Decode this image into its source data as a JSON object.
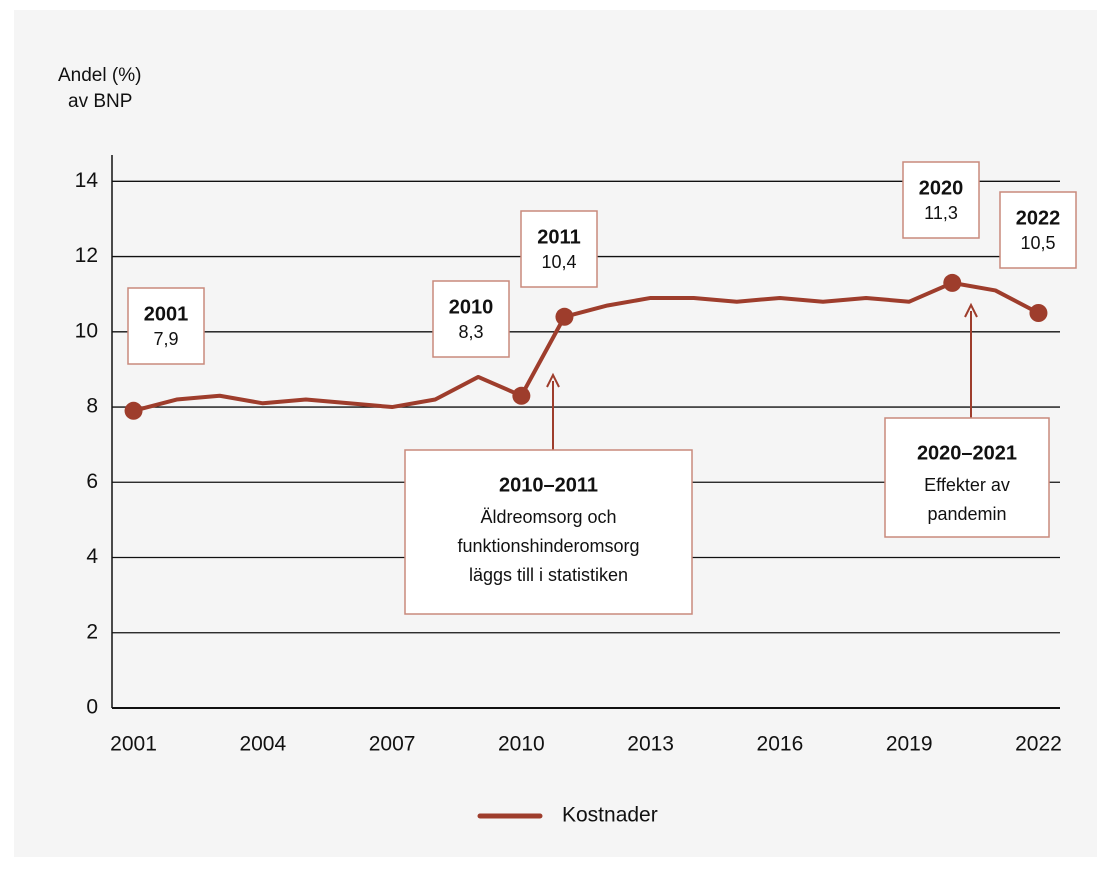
{
  "chart_data": {
    "type": "line",
    "y_label": [
      "Andel (%)",
      "av BNP"
    ],
    "x": [
      2001,
      2002,
      2003,
      2004,
      2005,
      2006,
      2007,
      2008,
      2009,
      2010,
      2011,
      2012,
      2013,
      2014,
      2015,
      2016,
      2017,
      2018,
      2019,
      2020,
      2021,
      2022
    ],
    "series": [
      {
        "name": "Kostnader",
        "color": "#9e3d2c",
        "values": [
          7.9,
          8.2,
          8.3,
          8.1,
          8.2,
          8.1,
          8.0,
          8.2,
          8.8,
          8.3,
          10.4,
          10.7,
          10.9,
          10.9,
          10.8,
          10.9,
          10.8,
          10.9,
          10.8,
          11.3,
          11.1,
          10.5
        ],
        "value_labels": [
          "7,9",
          null,
          null,
          null,
          null,
          null,
          null,
          null,
          null,
          "8,3",
          "10,4",
          null,
          null,
          null,
          null,
          null,
          null,
          null,
          null,
          "11,3",
          null,
          "10,5"
        ]
      }
    ],
    "xlim": [
      2000.5,
      2022.5
    ],
    "xticks": [
      2001,
      2004,
      2007,
      2010,
      2013,
      2016,
      2019,
      2022
    ],
    "ylim": [
      0,
      14.7
    ],
    "yticks": [
      0,
      2,
      4,
      6,
      8,
      10,
      12,
      14
    ],
    "grid": true,
    "annotations": [
      {
        "title": "2010–2011",
        "text": [
          "Äldreomsorg och",
          "funktionshinderomsorg",
          "läggs till i statistiken"
        ]
      },
      {
        "title": "2020–2021",
        "text": [
          "Effekter av",
          "pandemin"
        ]
      }
    ]
  }
}
